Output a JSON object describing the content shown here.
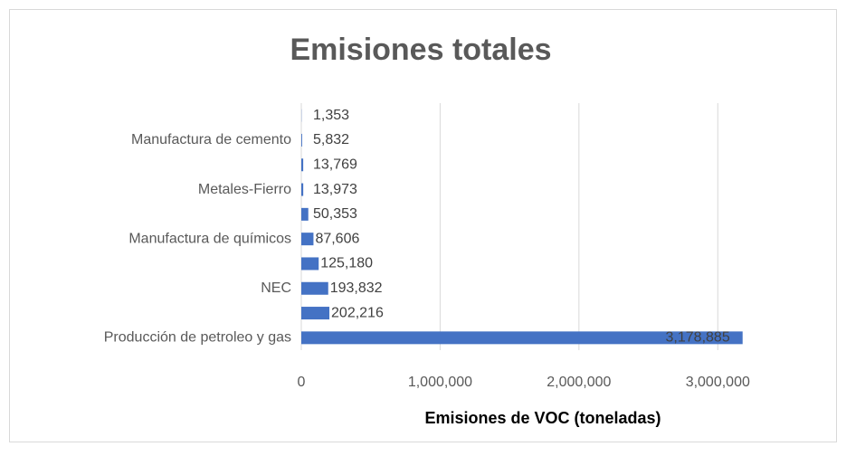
{
  "chart_data": {
    "type": "bar",
    "orientation": "horizontal",
    "title": "Emisiones totales",
    "x_label": "Emisiones de VOC (toneladas)",
    "categories": [
      "Producción de petroleo y gas",
      null,
      "NEC",
      null,
      "Manufactura de químicos",
      null,
      "Metales-Fierro",
      null,
      "Manufactura de cemento",
      null
    ],
    "values": [
      3178885,
      202216,
      193832,
      125180,
      87606,
      50353,
      13973,
      13769,
      5832,
      1353
    ],
    "value_labels": [
      "3,178,885",
      "202,216",
      "193,832",
      "125,180",
      "87,606",
      "50,353",
      "13,973",
      "13,769",
      "5,832",
      "1,353"
    ],
    "color": "#4472c4",
    "xlim": [
      0,
      3500000
    ],
    "xticks": [
      0,
      {
        "value": 1000000,
        "label": "1,000,000"
      },
      {
        "value": 2000000,
        "label": "2,000,000"
      },
      {
        "value": 3000000,
        "label": "3,000,000"
      }
    ],
    "grid": true
  }
}
